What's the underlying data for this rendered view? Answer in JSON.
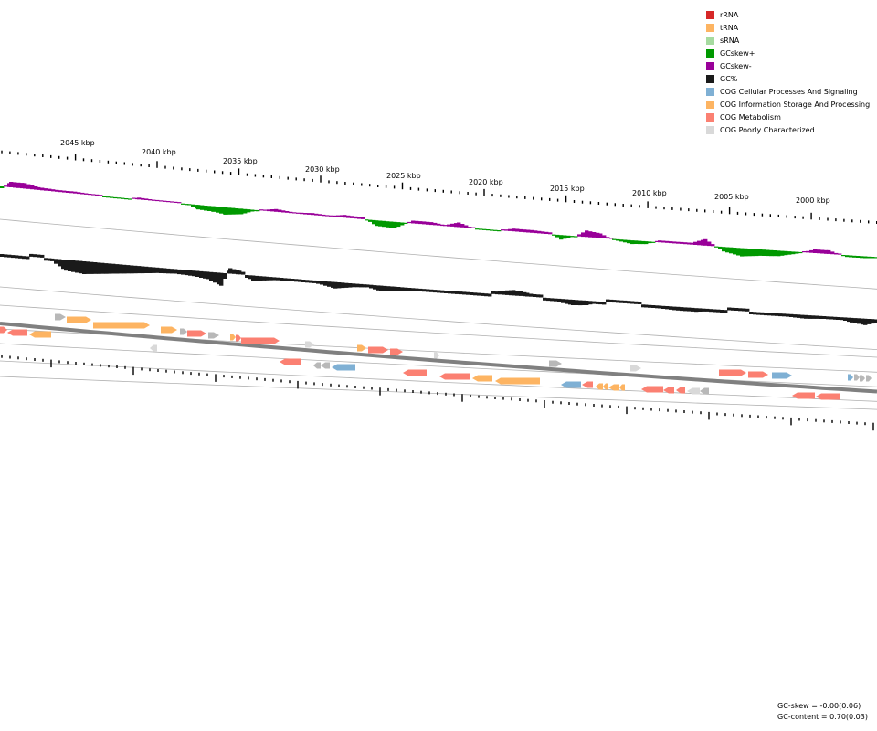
{
  "legend": [
    {
      "label": "rRNA",
      "color": "#d62728"
    },
    {
      "label": "tRNA",
      "color": "#fdb462"
    },
    {
      "label": "sRNA",
      "color": "#a6dba0"
    },
    {
      "label": "GCskew+",
      "color": "#009900"
    },
    {
      "label": "GCskew-",
      "color": "#990099"
    },
    {
      "label": "GC%",
      "color": "#1a1a1a"
    },
    {
      "label": "COG Cellular Processes And Signaling",
      "color": "#7fb0d4"
    },
    {
      "label": "COG Information Storage And Processing",
      "color": "#fdb462"
    },
    {
      "label": "COG Metabolism",
      "color": "#fb8072"
    },
    {
      "label": "COG Poorly Characterized",
      "color": "#d9d9d9"
    }
  ],
  "scale": {
    "labels": [
      "2045 kbp",
      "2040 kbp",
      "2035 kbp",
      "2030 kbp",
      "2025 kbp",
      "2020 kbp",
      "2015 kbp",
      "2010 kbp",
      "2005 kbp",
      "2000 kbp"
    ]
  },
  "stats": {
    "gc_skew": "GC-skew = -0.00(0.06)",
    "gc_content": "GC-content = 0.70(0.03)"
  },
  "colors": {
    "skew_pos": "#009900",
    "skew_neg": "#990099",
    "gc": "#1a1a1a",
    "backbone": "#808080",
    "cog_cellular": "#7fb0d4",
    "cog_info": "#fdb462",
    "cog_metab": "#fb8072",
    "cog_poor": "#d9d9d9",
    "gray_feature": "#b8b8b8"
  }
}
